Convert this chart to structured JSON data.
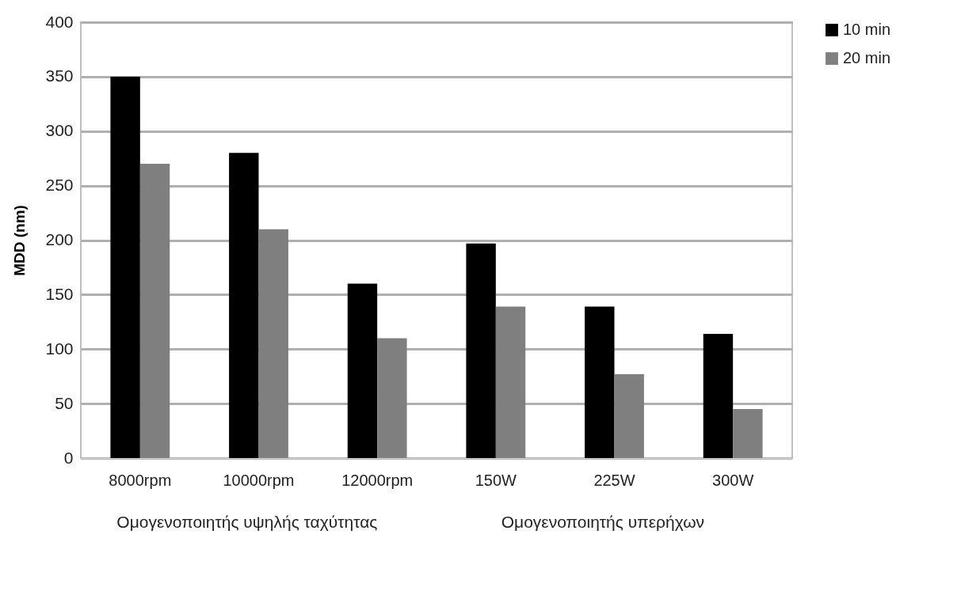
{
  "chart_data": {
    "type": "bar",
    "ylabel": "MDD (nm)",
    "categories": [
      "8000rpm",
      "10000rpm",
      "12000rpm",
      "150W",
      "225W",
      "300W"
    ],
    "series": [
      {
        "name": "10 min",
        "color": "#000000",
        "values": [
          350,
          280,
          160,
          197,
          139,
          114
        ]
      },
      {
        "name": "20 min",
        "color": "#7f7f7f",
        "values": [
          270,
          210,
          110,
          139,
          77,
          45
        ]
      }
    ],
    "ylim": [
      0,
      400
    ],
    "yticks": [
      0,
      50,
      100,
      150,
      200,
      250,
      300,
      350,
      400
    ],
    "grid": "y",
    "legend": "right",
    "annotations": [
      "Ομογενοποιητής υψηλής ταχύτητας",
      "Ομογενοποιητής υπερήχων"
    ]
  }
}
